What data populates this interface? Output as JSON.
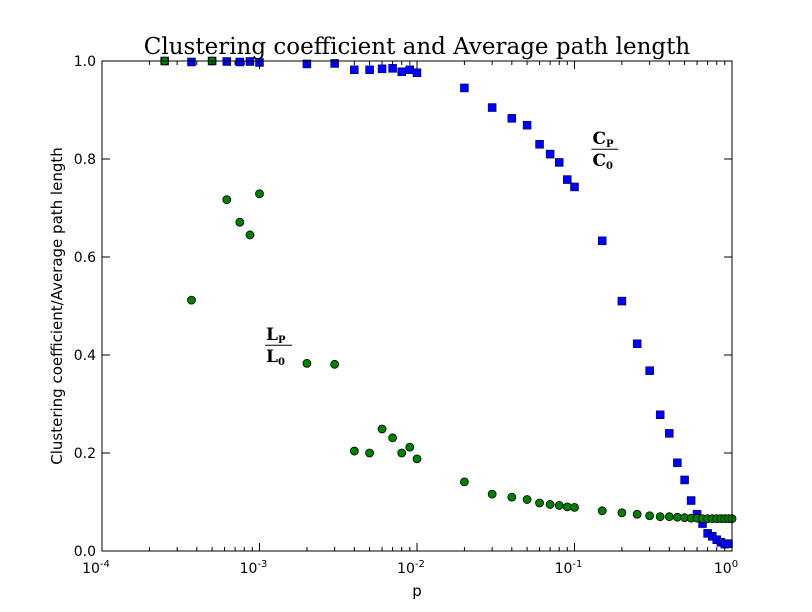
{
  "chart_data": {
    "type": "scatter",
    "title": "Clustering coefficient and Average path length",
    "xlabel": "p",
    "ylabel": "Clustering coefficient/Average path length",
    "x_scale": "log",
    "xlim": [
      0.0001,
      1
    ],
    "ylim": [
      0.0,
      1.0
    ],
    "x_ticks": [
      {
        "value": 0.0001,
        "base": "10",
        "exp": "-4"
      },
      {
        "value": 0.001,
        "base": "10",
        "exp": "-3"
      },
      {
        "value": 0.01,
        "base": "10",
        "exp": "-2"
      },
      {
        "value": 0.1,
        "base": "10",
        "exp": "-1"
      },
      {
        "value": 1,
        "base": "10",
        "exp": "0"
      }
    ],
    "y_ticks": [
      {
        "value": 0.0,
        "label": "0.0"
      },
      {
        "value": 0.2,
        "label": "0.2"
      },
      {
        "value": 0.4,
        "label": "0.4"
      },
      {
        "value": 0.6,
        "label": "0.6"
      },
      {
        "value": 0.8,
        "label": "0.8"
      },
      {
        "value": 1.0,
        "label": "1.0"
      }
    ],
    "grid": false,
    "series": [
      {
        "marker": "square",
        "color": "#0000ff",
        "points": [
          [
            0.00025,
            1.0
          ],
          [
            0.00037,
            0.998
          ],
          [
            0.0005,
            1.0
          ],
          [
            0.00062,
            0.999
          ],
          [
            0.00075,
            0.998
          ],
          [
            0.00087,
            0.999
          ],
          [
            0.001,
            0.997
          ],
          [
            0.002,
            0.994
          ],
          [
            0.003,
            0.995
          ],
          [
            0.004,
            0.982
          ],
          [
            0.005,
            0.982
          ],
          [
            0.006,
            0.984
          ],
          [
            0.007,
            0.985
          ],
          [
            0.008,
            0.978
          ],
          [
            0.009,
            0.982
          ],
          [
            0.01,
            0.976
          ],
          [
            0.02,
            0.945
          ],
          [
            0.03,
            0.905
          ],
          [
            0.04,
            0.883
          ],
          [
            0.05,
            0.869
          ],
          [
            0.06,
            0.83
          ],
          [
            0.07,
            0.81
          ],
          [
            0.08,
            0.793
          ],
          [
            0.09,
            0.758
          ],
          [
            0.1,
            0.743
          ],
          [
            0.15,
            0.633
          ],
          [
            0.2,
            0.51
          ],
          [
            0.25,
            0.423
          ],
          [
            0.3,
            0.368
          ],
          [
            0.35,
            0.278
          ],
          [
            0.4,
            0.24
          ],
          [
            0.45,
            0.18
          ],
          [
            0.5,
            0.145
          ],
          [
            0.55,
            0.103
          ],
          [
            0.6,
            0.075
          ],
          [
            0.65,
            0.056
          ],
          [
            0.7,
            0.036
          ],
          [
            0.75,
            0.03
          ],
          [
            0.8,
            0.023
          ],
          [
            0.85,
            0.018
          ],
          [
            0.9,
            0.014
          ],
          [
            0.95,
            0.015
          ]
        ]
      },
      {
        "marker": "circle",
        "color": "#008000",
        "points": [
          [
            0.00025,
            1.0
          ],
          [
            0.00037,
            0.512
          ],
          [
            0.0005,
            1.0
          ],
          [
            0.00062,
            0.717
          ],
          [
            0.00075,
            0.671
          ],
          [
            0.00087,
            0.645
          ],
          [
            0.001,
            0.729
          ],
          [
            0.002,
            0.383
          ],
          [
            0.003,
            0.381
          ],
          [
            0.004,
            0.204
          ],
          [
            0.005,
            0.2
          ],
          [
            0.006,
            0.249
          ],
          [
            0.007,
            0.231
          ],
          [
            0.008,
            0.2
          ],
          [
            0.009,
            0.212
          ],
          [
            0.01,
            0.188
          ],
          [
            0.02,
            0.141
          ],
          [
            0.03,
            0.116
          ],
          [
            0.04,
            0.11
          ],
          [
            0.05,
            0.105
          ],
          [
            0.06,
            0.098
          ],
          [
            0.07,
            0.095
          ],
          [
            0.08,
            0.093
          ],
          [
            0.09,
            0.09
          ],
          [
            0.1,
            0.089
          ],
          [
            0.15,
            0.082
          ],
          [
            0.2,
            0.078
          ],
          [
            0.25,
            0.075
          ],
          [
            0.3,
            0.072
          ],
          [
            0.35,
            0.07
          ],
          [
            0.4,
            0.07
          ],
          [
            0.45,
            0.069
          ],
          [
            0.5,
            0.068
          ],
          [
            0.55,
            0.067
          ],
          [
            0.6,
            0.067
          ],
          [
            0.65,
            0.066
          ],
          [
            0.7,
            0.066
          ],
          [
            0.75,
            0.066
          ],
          [
            0.8,
            0.066
          ],
          [
            0.85,
            0.066
          ],
          [
            0.9,
            0.066
          ],
          [
            0.95,
            0.066
          ],
          [
            1.0,
            0.066
          ]
        ]
      }
    ],
    "annotations": [
      {
        "numerator": "C",
        "numerator_sub": "P",
        "denominator": "C",
        "denominator_sub": "0",
        "x": 0.13,
        "y": 0.82
      },
      {
        "numerator": "L",
        "numerator_sub": "P",
        "denominator": "L",
        "denominator_sub": "0",
        "x": 0.0011,
        "y": 0.42
      }
    ]
  }
}
